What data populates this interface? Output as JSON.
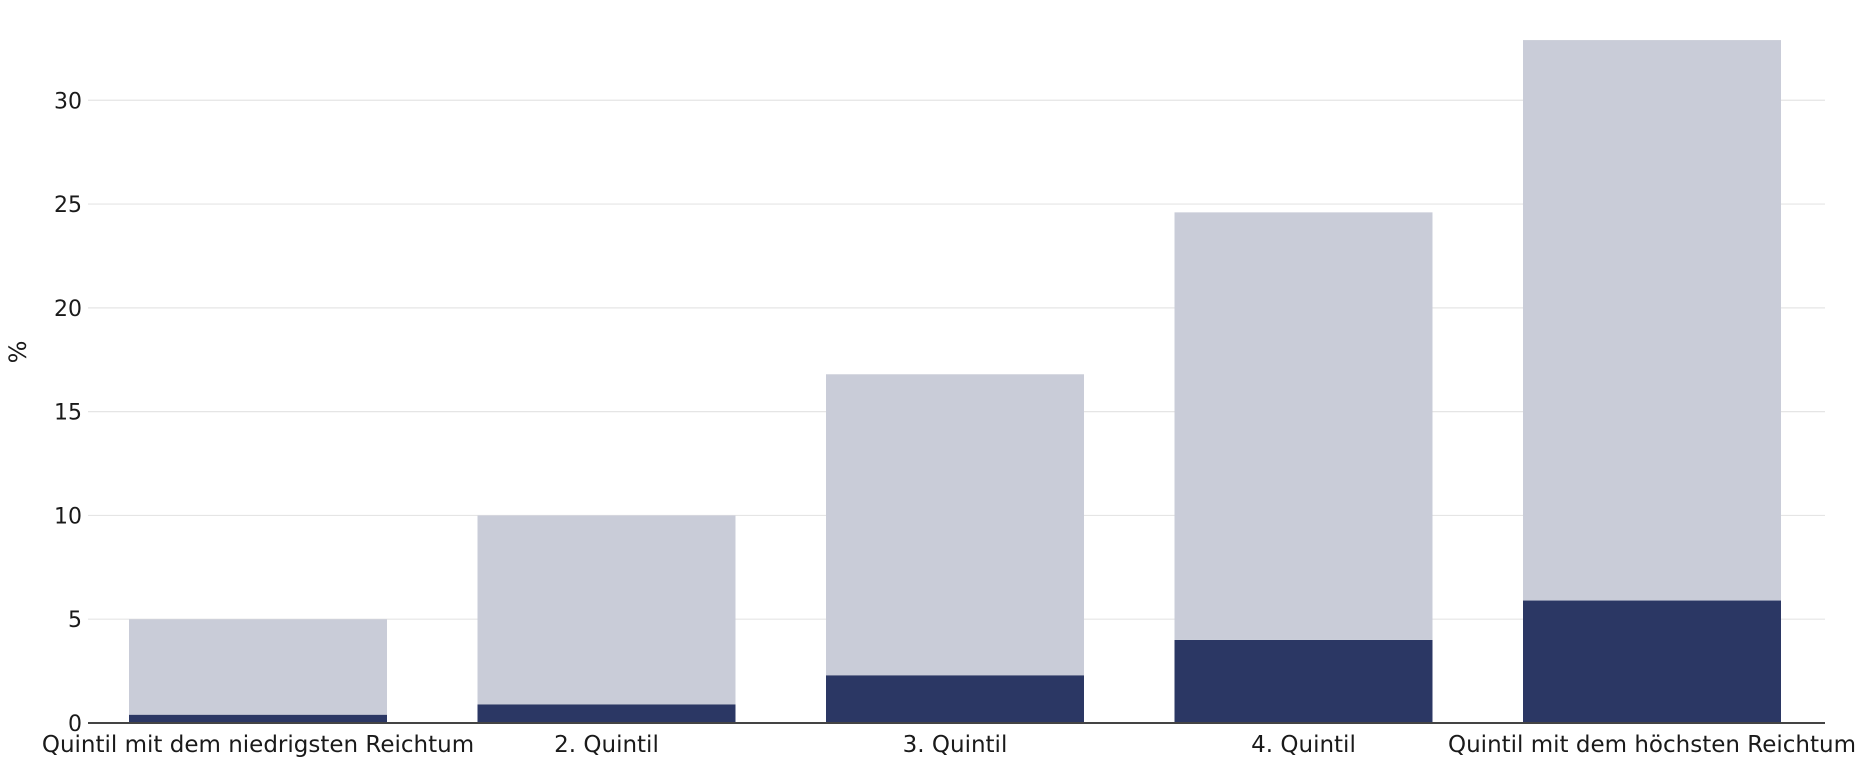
{
  "chart_data": {
    "type": "bar",
    "stacked": true,
    "title": "",
    "xlabel": "",
    "ylabel": "%",
    "ylim": [
      0,
      33
    ],
    "yticks": [
      0,
      5,
      10,
      15,
      20,
      25,
      30
    ],
    "grid": true,
    "legend": "none",
    "categories": [
      "Quintil mit dem niedrigsten Reichtum",
      "2. Quintil",
      "3. Quintil",
      "4. Quintil",
      "Quintil mit dem höchsten Reichtum"
    ],
    "series": [
      {
        "color": "#2b3764",
        "values": [
          0.4,
          0.9,
          2.3,
          4.0,
          5.9
        ]
      },
      {
        "color": "#c9ccd8",
        "values": [
          4.6,
          9.1,
          14.5,
          20.6,
          27.0
        ]
      }
    ]
  }
}
